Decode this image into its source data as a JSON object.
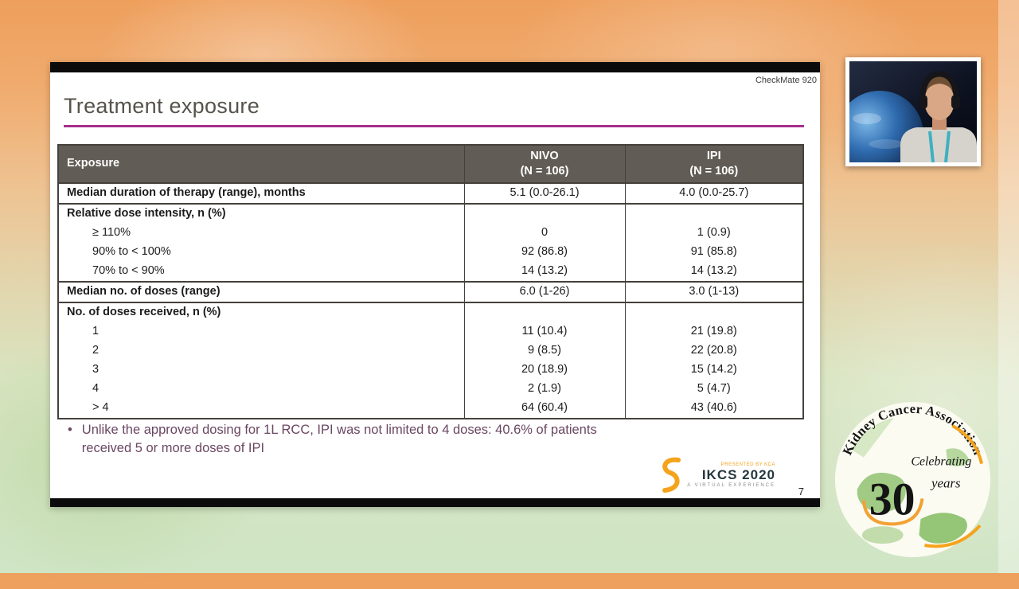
{
  "colors": {
    "accent_magenta": "#a62d8f",
    "table_header_bg": "#615c55",
    "bullet_text": "#6a4762",
    "logo_orange": "#f5a31c"
  },
  "slide": {
    "watermark": "CheckMate 920",
    "title": "Treatment exposure",
    "page_number": "7",
    "table": {
      "headers": [
        "Exposure",
        "NIVO\n(N = 106)",
        "IPI\n(N = 106)"
      ],
      "rows": [
        {
          "label": "Median duration of therapy (range), months",
          "nivo": "5.1 (0.0-26.1)",
          "ipi": "4.0 (0.0-25.7)",
          "bold": true,
          "section_start": true
        },
        {
          "label": "Relative dose intensity, n (%)",
          "nivo": "",
          "ipi": "",
          "bold": true,
          "section_start": true
        },
        {
          "label": "≥ 110%",
          "nivo": "0",
          "ipi": "1 (0.9)",
          "indent": true
        },
        {
          "label": "90% to < 100%",
          "nivo": "92 (86.8)",
          "ipi": "91 (85.8)",
          "indent": true
        },
        {
          "label": "70% to < 90%",
          "nivo": "14 (13.2)",
          "ipi": "14 (13.2)",
          "indent": true
        },
        {
          "label": "Median no. of doses (range)",
          "nivo": "6.0 (1-26)",
          "ipi": "3.0 (1-13)",
          "bold": true,
          "section_start": true
        },
        {
          "label": "No. of doses received, n (%)",
          "nivo": "",
          "ipi": "",
          "bold": true,
          "section_start": true
        },
        {
          "label": "1",
          "nivo": "11 (10.4)",
          "ipi": "21 (19.8)",
          "indent": true
        },
        {
          "label": "2",
          "nivo": "9 (8.5)",
          "ipi": "22 (20.8)",
          "indent": true
        },
        {
          "label": "3",
          "nivo": "20 (18.9)",
          "ipi": "15 (14.2)",
          "indent": true
        },
        {
          "label": "4",
          "nivo": "2 (1.9)",
          "ipi": "5 (4.7)",
          "indent": true
        },
        {
          "label": "> 4",
          "nivo": "64 (60.4)",
          "ipi": "43 (40.6)",
          "indent": true
        }
      ]
    },
    "bullet_text": "Unlike the approved dosing for 1L RCC, IPI was not limited to 4 doses: 40.6% of patients\nreceived 5 or more doses of IPI",
    "ikcs_logo": {
      "presented_by": "PRESENTED BY KCA",
      "title": "IKCS 2020",
      "subtitle": "A VIRTUAL EXPERIENCE"
    }
  },
  "badge": {
    "arc_text": "Kidney Cancer Association",
    "celebrating": "Celebrating",
    "number": "30",
    "years": "years"
  }
}
